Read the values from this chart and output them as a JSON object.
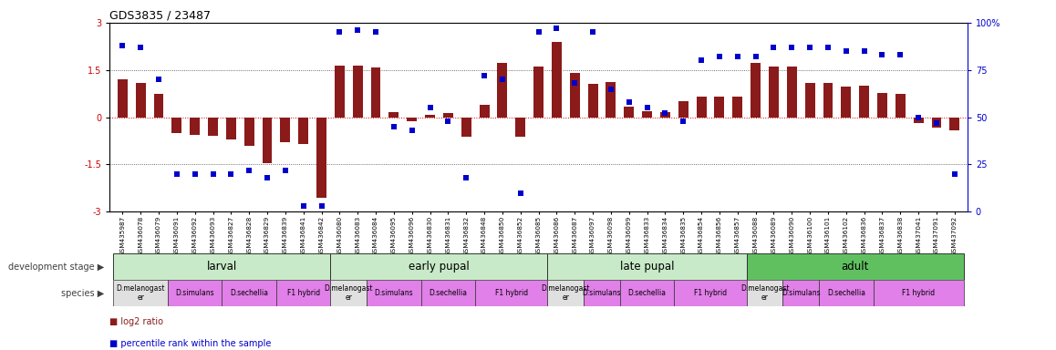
{
  "title": "GDS3835 / 23487",
  "samples": [
    "GSM435987",
    "GSM436078",
    "GSM436079",
    "GSM436091",
    "GSM436092",
    "GSM436093",
    "GSM436827",
    "GSM436828",
    "GSM436829",
    "GSM436839",
    "GSM436841",
    "GSM436842",
    "GSM436080",
    "GSM436083",
    "GSM436084",
    "GSM436095",
    "GSM436096",
    "GSM436830",
    "GSM436831",
    "GSM436832",
    "GSM436848",
    "GSM436850",
    "GSM436852",
    "GSM436085",
    "GSM436086",
    "GSM436087",
    "GSM436097",
    "GSM436098",
    "GSM436099",
    "GSM436833",
    "GSM436834",
    "GSM436835",
    "GSM436854",
    "GSM436856",
    "GSM436857",
    "GSM436088",
    "GSM436089",
    "GSM436090",
    "GSM436100",
    "GSM436101",
    "GSM436102",
    "GSM436836",
    "GSM436837",
    "GSM436838",
    "GSM437041",
    "GSM437091",
    "GSM437092"
  ],
  "log2_ratio": [
    1.2,
    1.1,
    0.75,
    -0.5,
    -0.55,
    -0.6,
    -0.7,
    -0.9,
    -1.45,
    -0.8,
    -0.85,
    -2.55,
    1.65,
    1.65,
    1.58,
    0.15,
    -0.12,
    0.08,
    0.12,
    -0.62,
    0.4,
    1.72,
    -0.62,
    1.6,
    2.4,
    1.4,
    1.05,
    1.12,
    0.35,
    0.18,
    0.15,
    0.5,
    0.65,
    0.65,
    0.65,
    1.72,
    1.62,
    1.62,
    1.08,
    1.08,
    0.98,
    1.0,
    0.78,
    0.75,
    -0.18,
    -0.32,
    -0.42
  ],
  "percentile": [
    88,
    87,
    70,
    20,
    20,
    20,
    20,
    22,
    18,
    22,
    3,
    3,
    95,
    96,
    95,
    45,
    43,
    55,
    48,
    18,
    72,
    70,
    10,
    95,
    97,
    68,
    95,
    65,
    58,
    55,
    52,
    48,
    80,
    82,
    82,
    82,
    87,
    87,
    87,
    87,
    85,
    85,
    83,
    83,
    50,
    47,
    20
  ],
  "development_stages": [
    {
      "label": "larval",
      "start": 0,
      "end": 11
    },
    {
      "label": "early pupal",
      "start": 12,
      "end": 23
    },
    {
      "label": "late pupal",
      "start": 24,
      "end": 34
    },
    {
      "label": "adult",
      "start": 35,
      "end": 46
    }
  ],
  "dev_stage_colors": [
    "#c8eac8",
    "#c8eac8",
    "#c8eac8",
    "#60c060"
  ],
  "species_groups": [
    {
      "label": "D.melanogast\ner",
      "start": 0,
      "end": 2,
      "color": "#e0e0e0"
    },
    {
      "label": "D.simulans",
      "start": 3,
      "end": 5,
      "color": "#e080e8"
    },
    {
      "label": "D.sechellia",
      "start": 6,
      "end": 8,
      "color": "#e080e8"
    },
    {
      "label": "F1 hybrid",
      "start": 9,
      "end": 11,
      "color": "#e080e8"
    },
    {
      "label": "D.melanogast\ner",
      "start": 12,
      "end": 13,
      "color": "#e0e0e0"
    },
    {
      "label": "D.simulans",
      "start": 14,
      "end": 16,
      "color": "#e080e8"
    },
    {
      "label": "D.sechellia",
      "start": 17,
      "end": 19,
      "color": "#e080e8"
    },
    {
      "label": "F1 hybrid",
      "start": 20,
      "end": 23,
      "color": "#e080e8"
    },
    {
      "label": "D.melanogast\ner",
      "start": 24,
      "end": 25,
      "color": "#e0e0e0"
    },
    {
      "label": "D.simulans",
      "start": 26,
      "end": 27,
      "color": "#e080e8"
    },
    {
      "label": "D.sechellia",
      "start": 28,
      "end": 30,
      "color": "#e080e8"
    },
    {
      "label": "F1 hybrid",
      "start": 31,
      "end": 34,
      "color": "#e080e8"
    },
    {
      "label": "D.melanogast\ner",
      "start": 35,
      "end": 36,
      "color": "#e0e0e0"
    },
    {
      "label": "D.simulans",
      "start": 37,
      "end": 38,
      "color": "#e080e8"
    },
    {
      "label": "D.sechellia",
      "start": 39,
      "end": 41,
      "color": "#e080e8"
    },
    {
      "label": "F1 hybrid",
      "start": 42,
      "end": 46,
      "color": "#e080e8"
    }
  ],
  "bar_color": "#8b1a1a",
  "dot_color": "#0000cc",
  "ylim": [
    -3,
    3
  ],
  "y2lim": [
    0,
    100
  ],
  "zero_line_color": "#cc0000",
  "bg_color": "#ffffff",
  "fig_width": 11.58,
  "fig_height": 3.84
}
